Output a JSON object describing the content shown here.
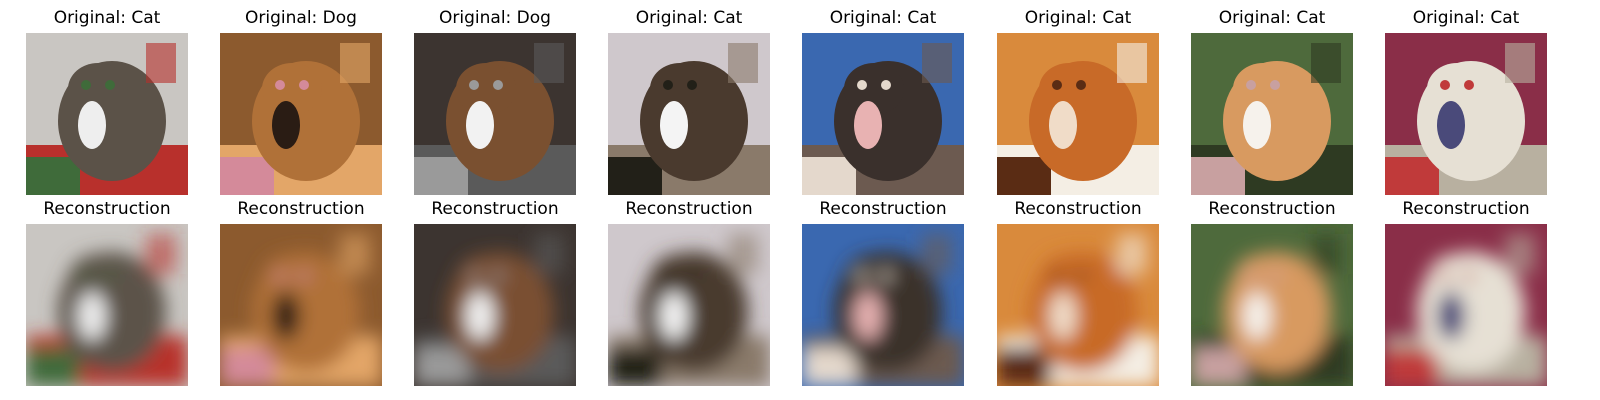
{
  "panels": [
    {
      "original_title": "Original: Cat",
      "reconstruction_title": "Reconstruction",
      "colors": {
        "bg": "#c9c6c2",
        "main": "#5b5248",
        "accent": "#eeeeee",
        "stripe1": "#3f6b3a",
        "stripe2": "#b8302c"
      }
    },
    {
      "original_title": "Original: Dog",
      "reconstruction_title": "Reconstruction",
      "colors": {
        "bg": "#8c5a2e",
        "main": "#b07138",
        "accent": "#2a1c14",
        "stripe1": "#d48a9a",
        "stripe2": "#e3a668"
      }
    },
    {
      "original_title": "Original: Dog",
      "reconstruction_title": "Reconstruction",
      "colors": {
        "bg": "#3c3430",
        "main": "#7a5030",
        "accent": "#f2f2f2",
        "stripe1": "#9a9a9a",
        "stripe2": "#5a5a5a"
      }
    },
    {
      "original_title": "Original: Cat",
      "reconstruction_title": "Reconstruction",
      "colors": {
        "bg": "#cfc8cc",
        "main": "#4a3a2e",
        "accent": "#f4f4f4",
        "stripe1": "#222018",
        "stripe2": "#8a7a6a"
      }
    },
    {
      "original_title": "Original: Cat",
      "reconstruction_title": "Reconstruction",
      "colors": {
        "bg": "#3a68b0",
        "main": "#3a302c",
        "accent": "#e8b2b2",
        "stripe1": "#e4d8cc",
        "stripe2": "#6c5a50"
      }
    },
    {
      "original_title": "Original: Cat",
      "reconstruction_title": "Reconstruction",
      "colors": {
        "bg": "#d98a3c",
        "main": "#c86a28",
        "accent": "#f0dcc8",
        "stripe1": "#5a2c14",
        "stripe2": "#f4eee4"
      }
    },
    {
      "original_title": "Original: Cat",
      "reconstruction_title": "Reconstruction",
      "colors": {
        "bg": "#4e6a3c",
        "main": "#d89a60",
        "accent": "#f6f2ec",
        "stripe1": "#c8a0a0",
        "stripe2": "#2e3a22"
      }
    },
    {
      "original_title": "Original: Cat",
      "reconstruction_title": "Reconstruction",
      "colors": {
        "bg": "#8a2e48",
        "main": "#e6e0d4",
        "accent": "#4a4a7a",
        "stripe1": "#c03a3a",
        "stripe2": "#b8b0a0"
      }
    }
  ]
}
